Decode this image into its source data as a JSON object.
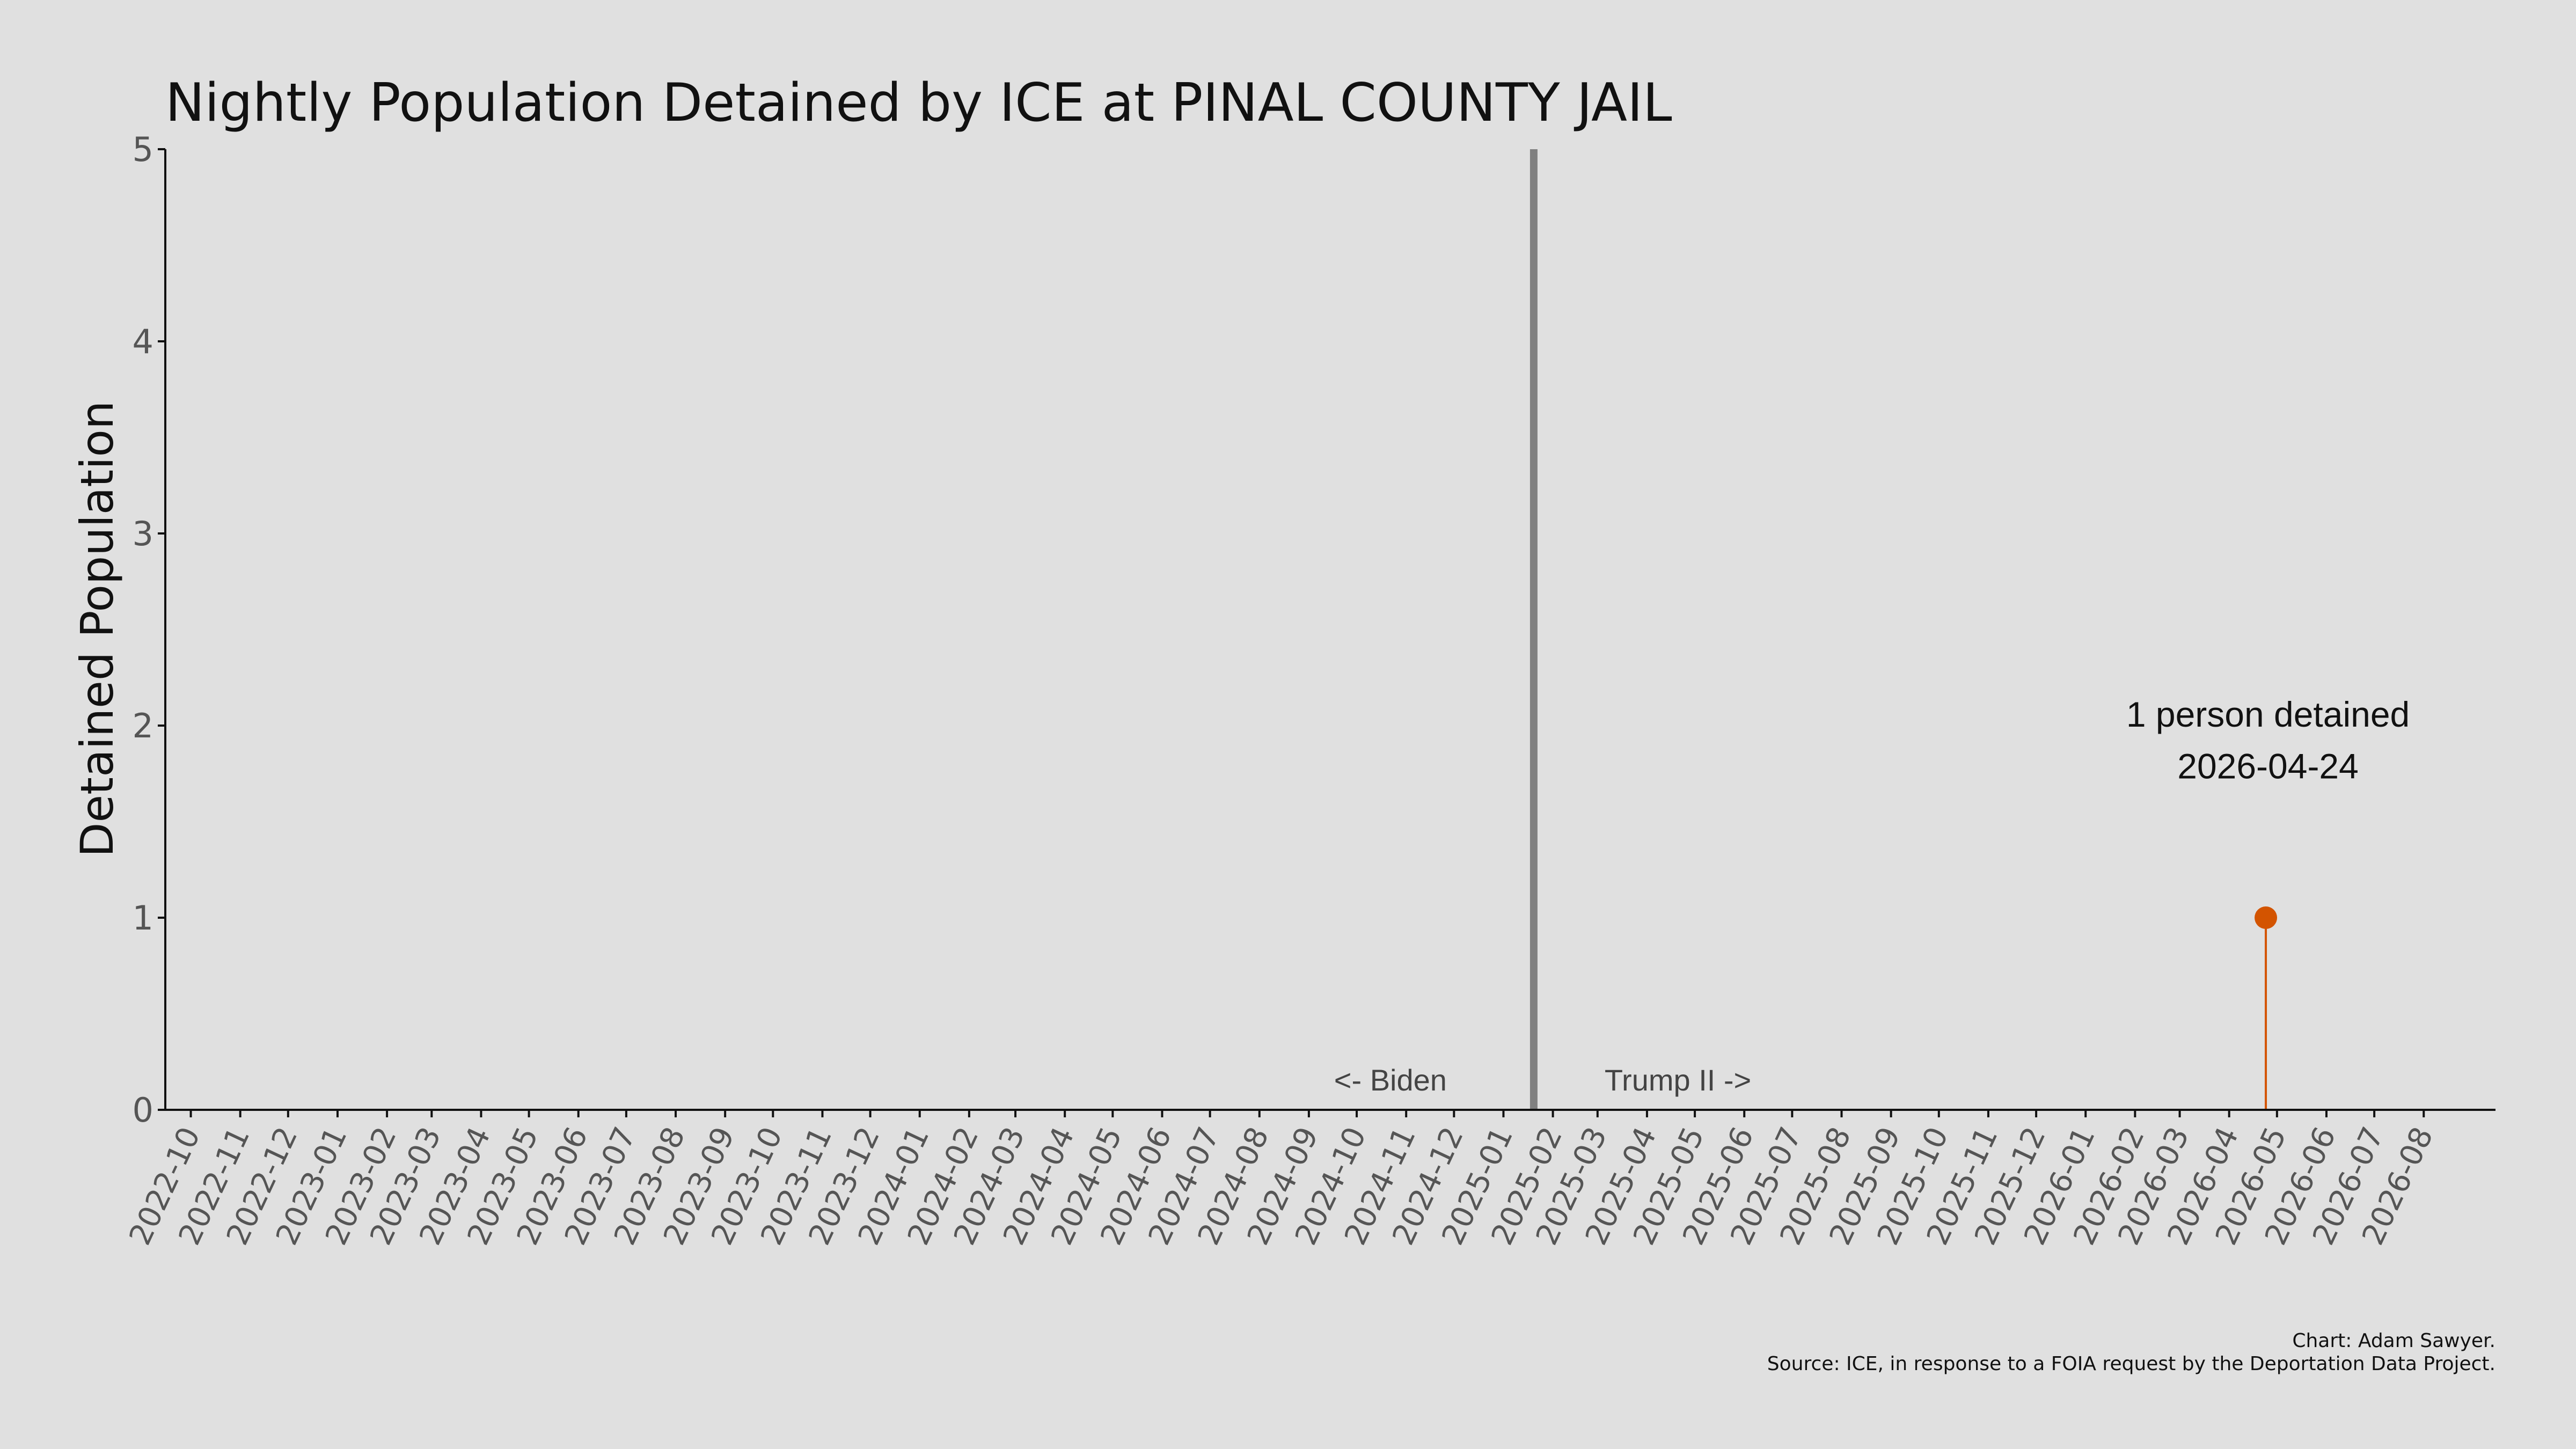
{
  "chart_data": {
    "type": "line",
    "title": "Nightly Population Detained by ICE at PINAL COUNTY JAIL",
    "ylabel": "Detained Population",
    "xlabel": "",
    "ylim": [
      0,
      5
    ],
    "yticks": [
      "0",
      "1",
      "2",
      "3",
      "4",
      "5"
    ],
    "xlim": [
      "2022-09-15",
      "2026-09-15"
    ],
    "xticks": [
      "2022-10",
      "2022-11",
      "2022-12",
      "2023-01",
      "2023-02",
      "2023-03",
      "2023-04",
      "2023-05",
      "2023-06",
      "2023-07",
      "2023-08",
      "2023-09",
      "2023-10",
      "2023-11",
      "2023-12",
      "2024-01",
      "2024-02",
      "2024-03",
      "2024-04",
      "2024-05",
      "2024-06",
      "2024-07",
      "2024-08",
      "2024-09",
      "2024-10",
      "2024-11",
      "2024-12",
      "2025-01",
      "2025-02",
      "2025-03",
      "2025-04",
      "2025-05",
      "2025-06",
      "2025-07",
      "2025-08",
      "2025-09",
      "2025-10",
      "2025-11",
      "2025-12",
      "2026-01",
      "2026-02",
      "2026-03",
      "2026-04",
      "2026-05",
      "2026-06",
      "2026-07",
      "2026-08"
    ],
    "grid": false,
    "series": [
      {
        "points": [
          {
            "x": "2026-04-24",
            "y": 1
          }
        ]
      }
    ],
    "divider": {
      "x": "2025-01-20"
    },
    "era_labels": {
      "left": "<- Biden",
      "right": "Trump II ->"
    },
    "annotation": {
      "line1": "1 person detained",
      "line2": "2026-04-24"
    },
    "colors": {
      "background": "#e0e0e0",
      "point": "#d35400",
      "divider": "#808080",
      "axis": "#111111"
    }
  },
  "caption": {
    "line1": "Chart: Adam Sawyer.",
    "line2": "Source: ICE, in response to a FOIA request by the Deportation Data Project."
  }
}
